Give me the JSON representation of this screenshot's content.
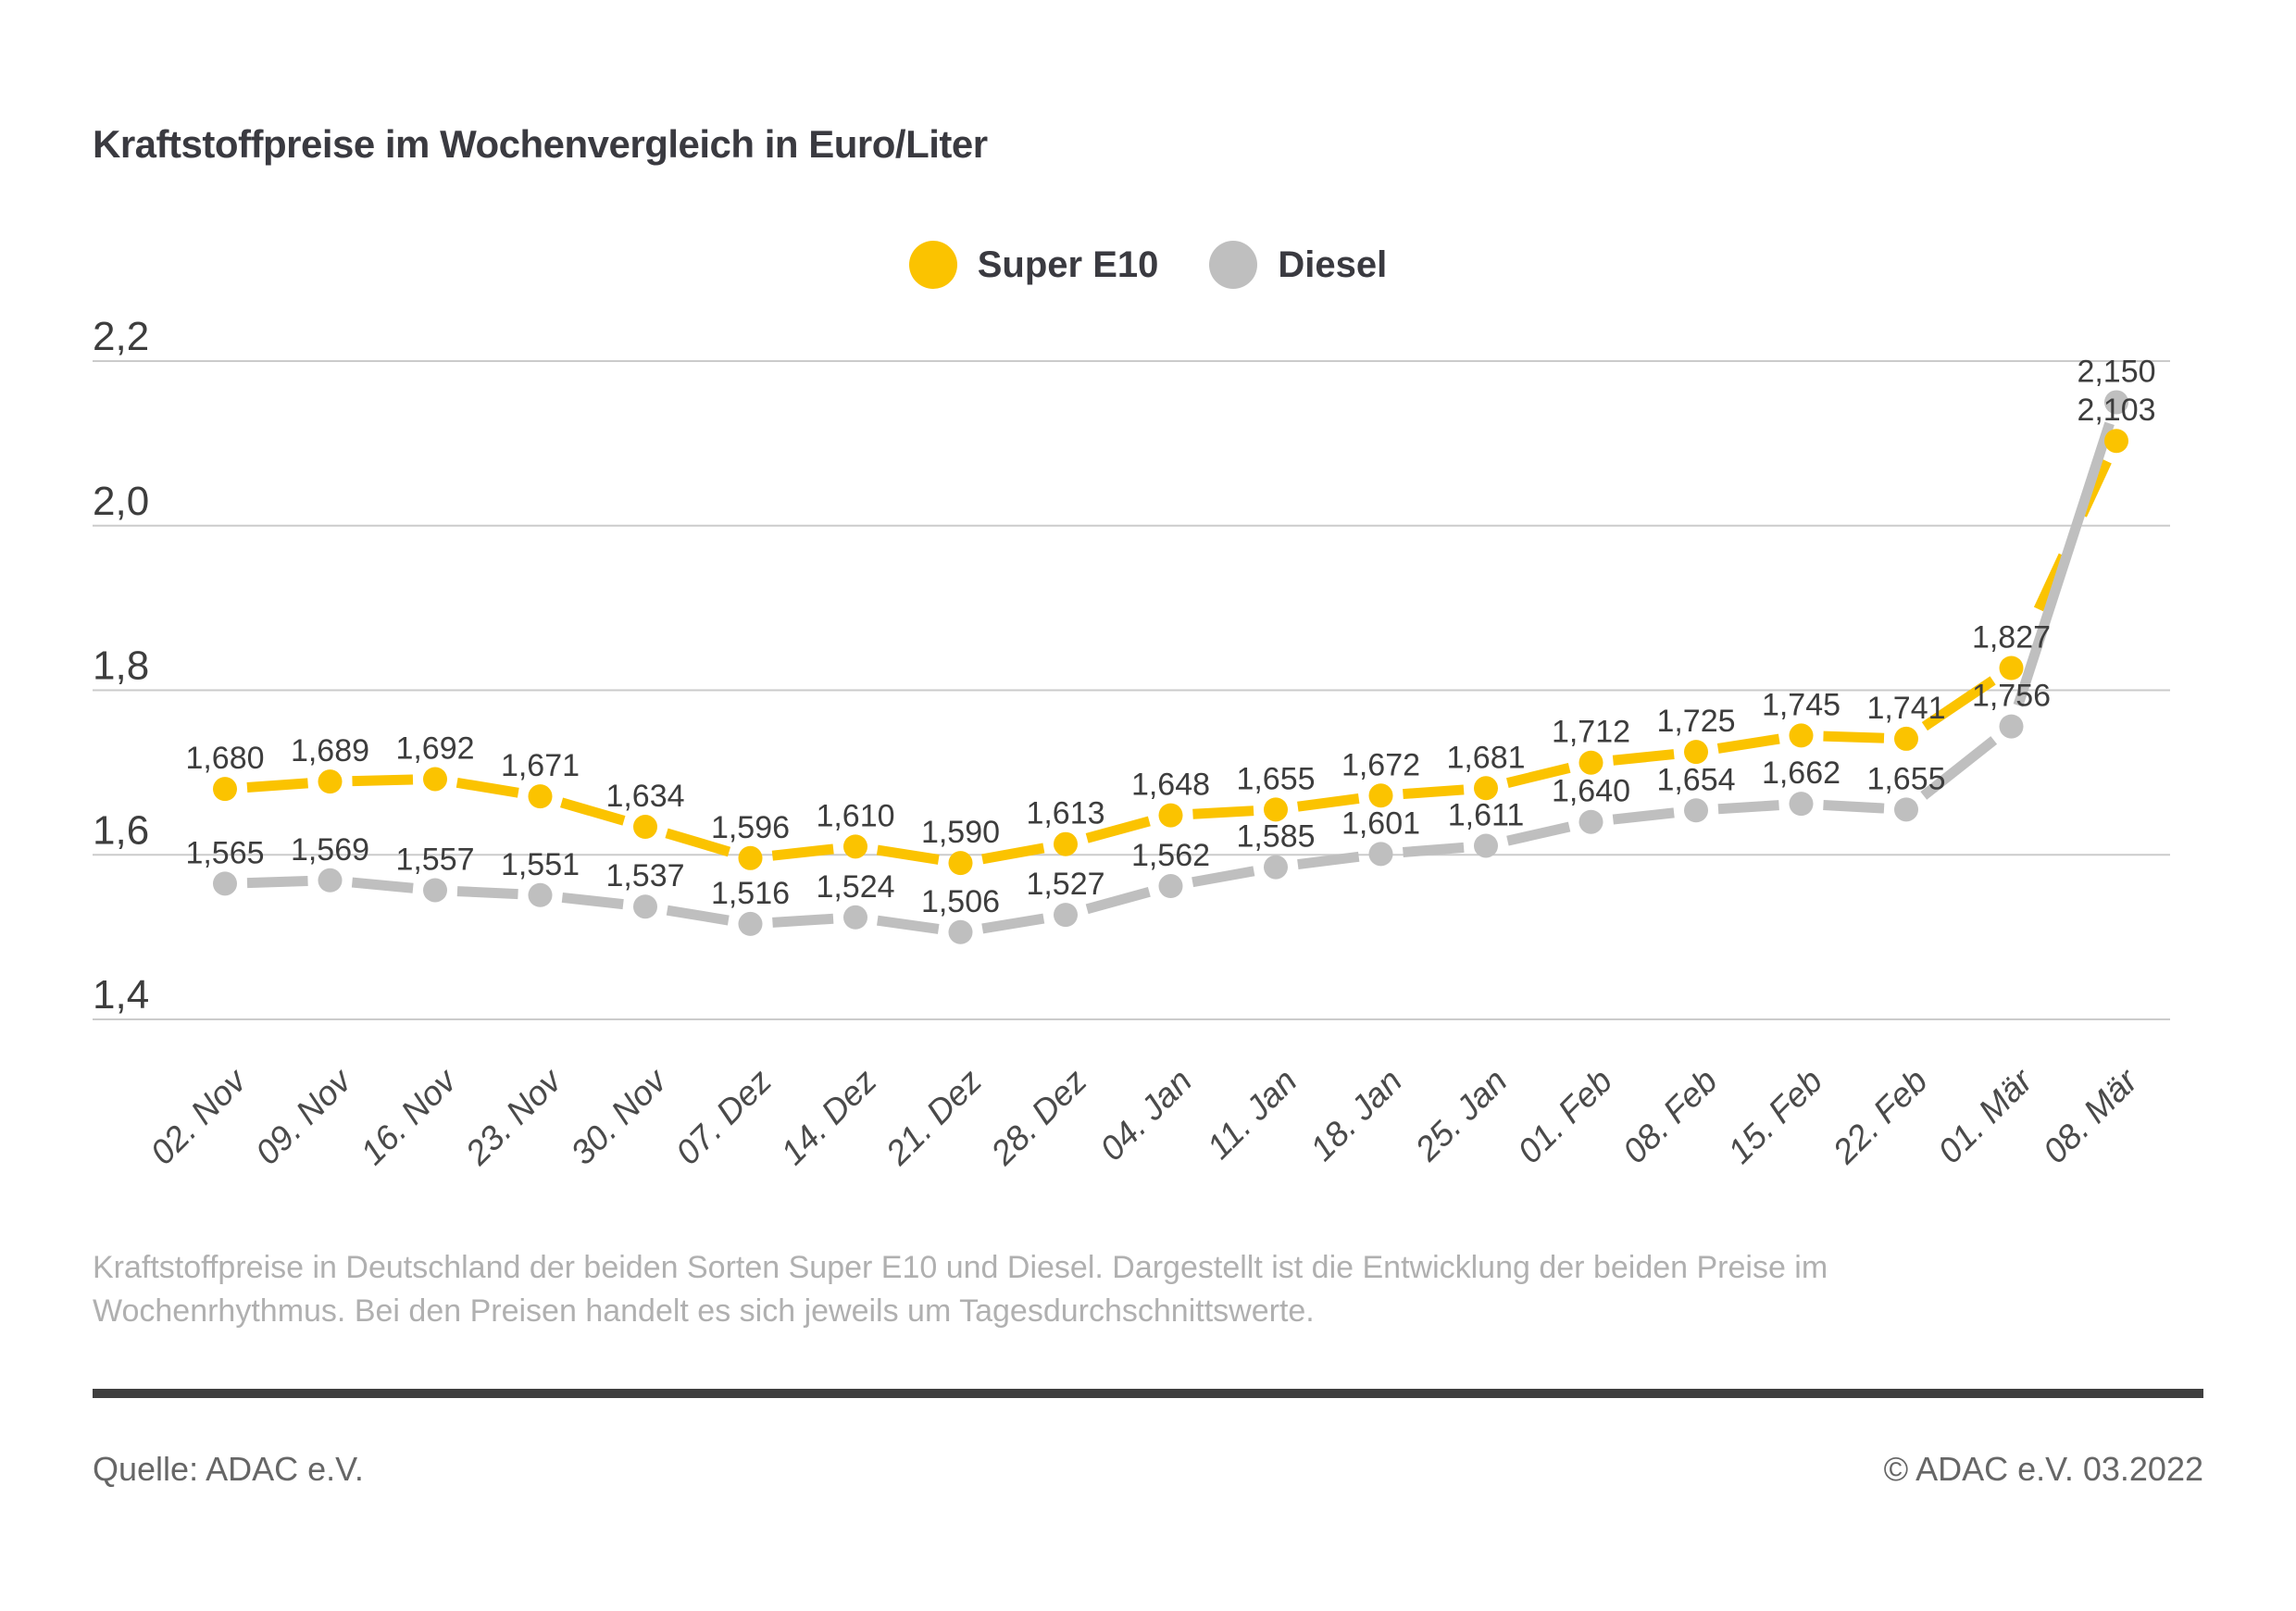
{
  "header": {
    "title": "Kraftstoffpreise im Wochenvergleich in Euro/Liter"
  },
  "chart_data": {
    "type": "line",
    "title": "Kraftstoffpreise im Wochenvergleich in Euro/Liter",
    "categories": [
      "02. Nov",
      "09. Nov",
      "16. Nov",
      "23. Nov",
      "30. Nov",
      "07. Dez",
      "14. Dez",
      "21. Dez",
      "28. Dez",
      "04. Jan",
      "11. Jan",
      "18. Jan",
      "25. Jan",
      "01. Feb",
      "08. Feb",
      "15. Feb",
      "22. Feb",
      "01. Mär",
      "08. Mär"
    ],
    "series": [
      {
        "name": "Super E10",
        "color": "#fbc300",
        "values": [
          1.68,
          1.689,
          1.692,
          1.671,
          1.634,
          1.596,
          1.61,
          1.59,
          1.613,
          1.648,
          1.655,
          1.672,
          1.681,
          1.712,
          1.725,
          1.745,
          1.741,
          1.827,
          2.103
        ]
      },
      {
        "name": "Diesel",
        "color": "#bfbfbf",
        "values": [
          1.565,
          1.569,
          1.557,
          1.551,
          1.537,
          1.516,
          1.524,
          1.506,
          1.527,
          1.562,
          1.585,
          1.601,
          1.611,
          1.64,
          1.654,
          1.662,
          1.655,
          1.756,
          2.15
        ]
      }
    ],
    "yticks": [
      {
        "label": "2,2",
        "value": 2.2
      },
      {
        "label": "2,0",
        "value": 2.0
      },
      {
        "label": "1,8",
        "value": 1.8
      },
      {
        "label": "1,6",
        "value": 1.6
      },
      {
        "label": "1,4",
        "value": 1.4
      }
    ],
    "ylim": [
      1.4,
      2.2
    ],
    "xlabel": "",
    "ylabel": "",
    "grid": "horizontal",
    "legend_position": "top",
    "value_label_decimal_separator": ","
  },
  "caption": {
    "lines": [
      "Kraftstoffpreise in Deutschland der beiden Sorten Super E10 und Diesel. Dargestellt ist die Entwicklung der beiden Preise im",
      "Wochenrhythmus. Bei den Preisen handelt es sich jeweils um Tagesdurchschnittswerte."
    ]
  },
  "footer": {
    "source": "Quelle: ADAC e.V.",
    "copyright": "© ADAC e.V. 03.2022"
  }
}
